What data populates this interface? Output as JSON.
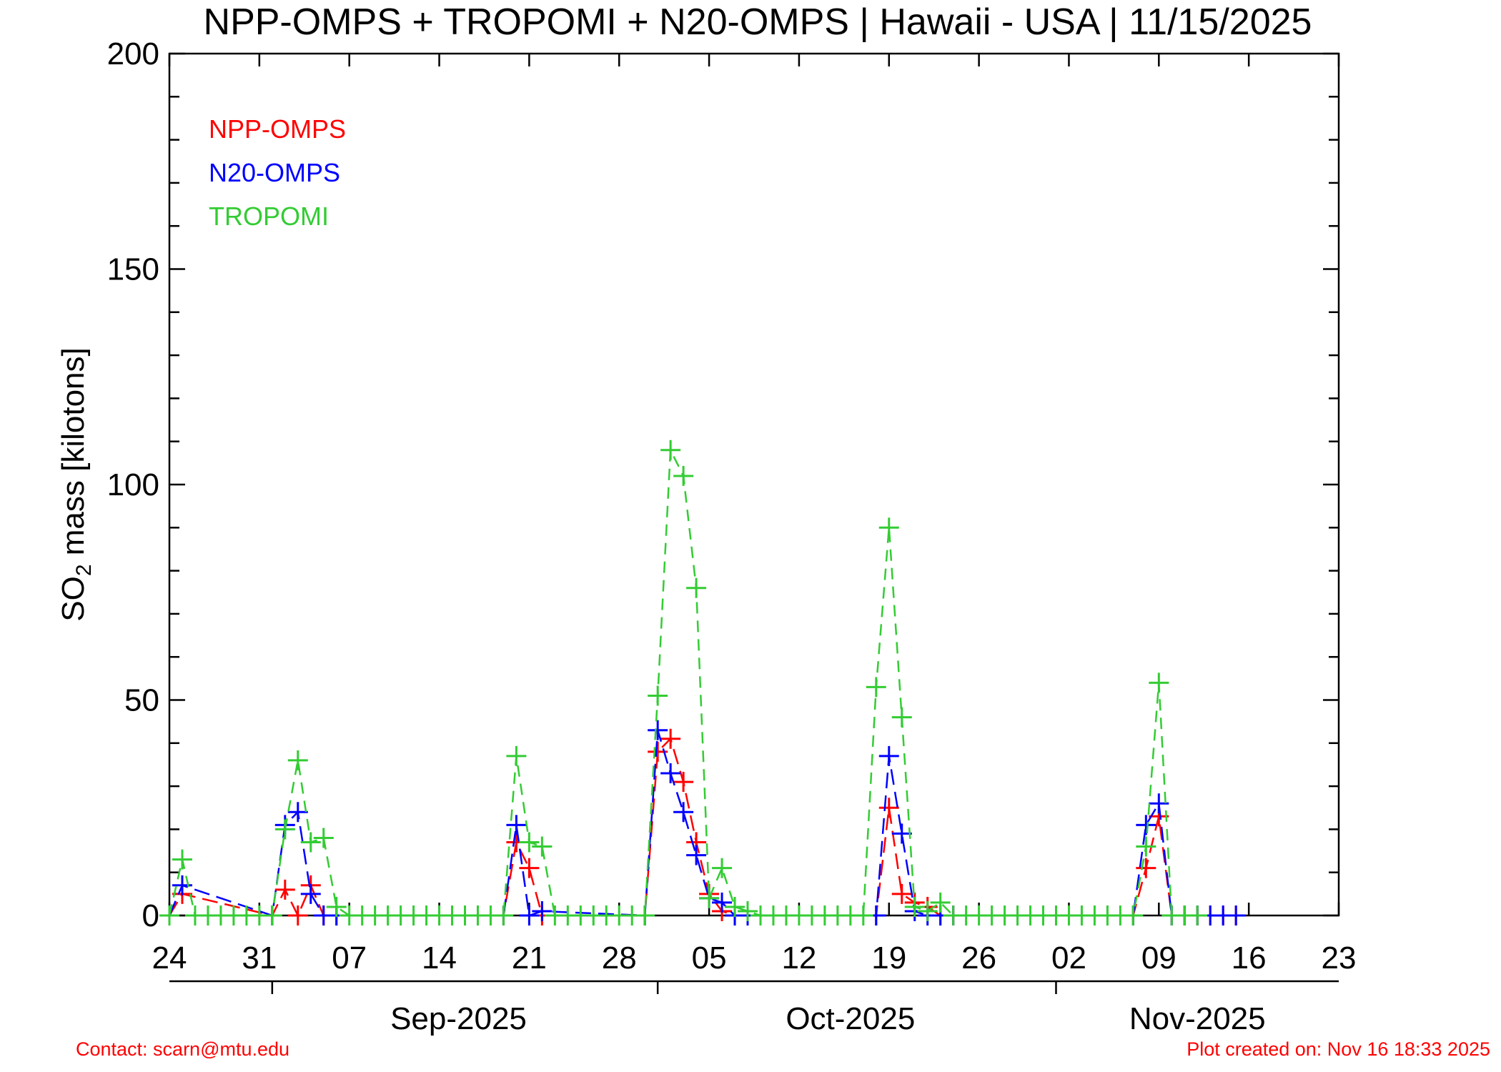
{
  "chart_data": {
    "type": "line",
    "title": "NPP-OMPS + TROPOMI + N20-OMPS | Hawaii - USA | 11/15/2025",
    "ylabel": "SO₂ mass [kilotons]",
    "ylabel_main": "SO",
    "ylabel_sub": "2",
    "ylabel_rest": " mass [kilotons]",
    "ylim": [
      0,
      200
    ],
    "yticks": [
      0,
      50,
      100,
      150,
      200
    ],
    "xlim": [
      "2025-08-24",
      "2025-11-23"
    ],
    "xticks": [
      {
        "date": "2025-08-24",
        "label": "24"
      },
      {
        "date": "2025-08-31",
        "label": "31"
      },
      {
        "date": "2025-09-07",
        "label": "07"
      },
      {
        "date": "2025-09-14",
        "label": "14"
      },
      {
        "date": "2025-09-21",
        "label": "21"
      },
      {
        "date": "2025-09-28",
        "label": "28"
      },
      {
        "date": "2025-10-05",
        "label": "05"
      },
      {
        "date": "2025-10-12",
        "label": "12"
      },
      {
        "date": "2025-10-19",
        "label": "19"
      },
      {
        "date": "2025-10-26",
        "label": "26"
      },
      {
        "date": "2025-11-02",
        "label": "02"
      },
      {
        "date": "2025-11-09",
        "label": "09"
      },
      {
        "date": "2025-11-16",
        "label": "16"
      },
      {
        "date": "2025-11-23",
        "label": "23"
      }
    ],
    "months": [
      {
        "label": "Sep-2025",
        "start": "2025-09-01",
        "end": "2025-09-30"
      },
      {
        "label": "Oct-2025",
        "start": "2025-10-01",
        "end": "2025-10-31"
      },
      {
        "label": "Nov-2025",
        "start": "2025-11-01",
        "end": "2025-11-23"
      }
    ],
    "legend_position": "top-left",
    "series": [
      {
        "name": "NPP-OMPS",
        "color": "#ff0000",
        "x": [
          "2025-08-24",
          "2025-08-25",
          "2025-09-01",
          "2025-09-02",
          "2025-09-03",
          "2025-09-04",
          "2025-09-05",
          "2025-09-06",
          "2025-09-19",
          "2025-09-20",
          "2025-09-21",
          "2025-09-22",
          "2025-09-30",
          "2025-10-01",
          "2025-10-02",
          "2025-10-03",
          "2025-10-04",
          "2025-10-05",
          "2025-10-06",
          "2025-10-07",
          "2025-10-08",
          "2025-10-09",
          "2025-10-18",
          "2025-10-19",
          "2025-10-20",
          "2025-10-21",
          "2025-10-22",
          "2025-10-23",
          "2025-10-24",
          "2025-11-07",
          "2025-11-08",
          "2025-11-09",
          "2025-11-10",
          "2025-11-11",
          "2025-11-12",
          "2025-11-13",
          "2025-11-14",
          "2025-11-15"
        ],
        "values": [
          0,
          5,
          0,
          6,
          0,
          7,
          0,
          0,
          0,
          17,
          11,
          0,
          0,
          38,
          41,
          31,
          17,
          5,
          1,
          0,
          0,
          0,
          0,
          25,
          5,
          3,
          2,
          0,
          0,
          0,
          11,
          23,
          0,
          0,
          0,
          0,
          0,
          0
        ]
      },
      {
        "name": "N20-OMPS",
        "color": "#0000ff",
        "x": [
          "2025-08-24",
          "2025-08-25",
          "2025-09-01",
          "2025-09-02",
          "2025-09-03",
          "2025-09-04",
          "2025-09-05",
          "2025-09-06",
          "2025-09-19",
          "2025-09-20",
          "2025-09-21",
          "2025-09-22",
          "2025-09-30",
          "2025-10-01",
          "2025-10-02",
          "2025-10-03",
          "2025-10-04",
          "2025-10-05",
          "2025-10-06",
          "2025-10-07",
          "2025-10-08",
          "2025-10-09",
          "2025-10-18",
          "2025-10-19",
          "2025-10-20",
          "2025-10-21",
          "2025-10-22",
          "2025-10-23",
          "2025-10-24",
          "2025-11-07",
          "2025-11-08",
          "2025-11-09",
          "2025-11-10",
          "2025-11-11",
          "2025-11-12",
          "2025-11-13",
          "2025-11-14",
          "2025-11-15"
        ],
        "values": [
          0,
          7,
          0,
          21,
          24,
          5,
          0,
          0,
          0,
          21,
          0,
          1,
          0,
          43,
          33,
          24,
          14,
          4,
          3,
          0,
          0,
          0,
          0,
          37,
          19,
          1,
          0,
          0,
          0,
          0,
          21,
          26,
          0,
          0,
          0,
          0,
          0,
          0
        ]
      },
      {
        "name": "TROPOMI",
        "color": "#33cc33",
        "x": [
          "2025-08-24",
          "2025-08-25",
          "2025-08-26",
          "2025-08-27",
          "2025-08-28",
          "2025-08-29",
          "2025-08-30",
          "2025-08-31",
          "2025-09-01",
          "2025-09-02",
          "2025-09-03",
          "2025-09-04",
          "2025-09-05",
          "2025-09-06",
          "2025-09-07",
          "2025-09-08",
          "2025-09-09",
          "2025-09-10",
          "2025-09-11",
          "2025-09-12",
          "2025-09-13",
          "2025-09-14",
          "2025-09-15",
          "2025-09-16",
          "2025-09-17",
          "2025-09-18",
          "2025-09-19",
          "2025-09-20",
          "2025-09-21",
          "2025-09-22",
          "2025-09-23",
          "2025-09-24",
          "2025-09-25",
          "2025-09-26",
          "2025-09-27",
          "2025-09-28",
          "2025-09-29",
          "2025-09-30",
          "2025-10-01",
          "2025-10-02",
          "2025-10-03",
          "2025-10-04",
          "2025-10-05",
          "2025-10-06",
          "2025-10-07",
          "2025-10-08",
          "2025-10-09",
          "2025-10-10",
          "2025-10-11",
          "2025-10-12",
          "2025-10-13",
          "2025-10-14",
          "2025-10-15",
          "2025-10-16",
          "2025-10-17",
          "2025-10-18",
          "2025-10-19",
          "2025-10-20",
          "2025-10-21",
          "2025-10-22",
          "2025-10-23",
          "2025-10-24",
          "2025-10-25",
          "2025-10-26",
          "2025-10-27",
          "2025-10-28",
          "2025-10-29",
          "2025-10-30",
          "2025-10-31",
          "2025-11-01",
          "2025-11-02",
          "2025-11-03",
          "2025-11-04",
          "2025-11-05",
          "2025-11-06",
          "2025-11-07",
          "2025-11-08",
          "2025-11-09",
          "2025-11-10",
          "2025-11-11",
          "2025-11-12"
        ],
        "values": [
          0,
          13,
          0,
          0,
          0,
          0,
          0,
          0,
          0,
          20,
          36,
          17,
          18,
          2,
          0,
          0,
          0,
          0,
          0,
          0,
          0,
          0,
          0,
          0,
          0,
          0,
          0,
          37,
          17,
          16,
          0,
          0,
          0,
          0,
          0,
          0,
          0,
          0,
          51,
          108,
          102,
          76,
          4,
          11,
          2,
          1,
          0,
          0,
          0,
          0,
          0,
          0,
          0,
          0,
          0,
          53,
          90,
          46,
          2,
          1,
          3,
          0,
          0,
          0,
          0,
          0,
          0,
          0,
          0,
          0,
          0,
          0,
          0,
          0,
          0,
          0,
          16,
          54,
          0,
          0,
          0
        ]
      }
    ]
  },
  "footer": {
    "contact": "Contact: scarn@mtu.edu",
    "created": "Plot created on: Nov 16 18:33 2025"
  },
  "colors": {
    "npp": "#ff0000",
    "n20": "#0000ff",
    "tropomi": "#33cc33",
    "footer_text": "#ff0000"
  }
}
